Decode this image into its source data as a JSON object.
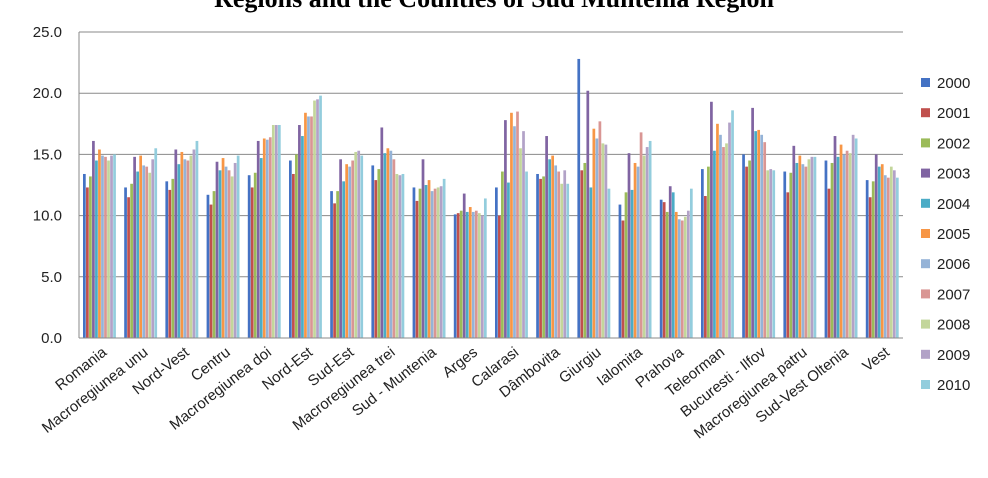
{
  "chart_data": {
    "type": "bar",
    "title": "Regions and the Counties of Sud Muntenia Region",
    "xlabel": "",
    "ylabel": "",
    "ylim": [
      0,
      25
    ],
    "yticks": [
      "0.0",
      "5.0",
      "10.0",
      "15.0",
      "20.0",
      "25.0"
    ],
    "grid": true,
    "legend_position": "right",
    "categories": [
      "Romania",
      "Macroregiunea unu",
      "Nord-Vest",
      "Centru",
      "Macroregiunea doi",
      "Nord-Est",
      "Sud-Est",
      "Macroregiunea trei",
      "Sud - Muntenia",
      "Arges",
      "Calarasi",
      "Dâmbovita",
      "Giurgiu",
      "Ialomita",
      "Prahova",
      "Teleorman",
      "Bucuresti - Ilfov",
      "Macroregiunea patru",
      "Sud-Vest Oltenia",
      "Vest"
    ],
    "series": [
      {
        "name": "2000",
        "color": "#4472C4",
        "values": [
          13.4,
          12.3,
          12.8,
          11.7,
          13.3,
          14.5,
          12.0,
          14.1,
          12.3,
          10.1,
          12.3,
          13.4,
          22.8,
          10.9,
          11.3,
          13.8,
          15.0,
          13.6,
          14.5,
          12.9
        ]
      },
      {
        "name": "2001",
        "color": "#C0504D",
        "values": [
          12.3,
          11.5,
          12.1,
          10.9,
          12.3,
          13.4,
          11.0,
          12.9,
          11.2,
          10.2,
          10.0,
          13.0,
          13.7,
          9.6,
          11.1,
          11.6,
          14.0,
          11.9,
          12.2,
          11.5
        ]
      },
      {
        "name": "2002",
        "color": "#9BBB59",
        "values": [
          13.2,
          12.6,
          13.0,
          12.0,
          13.5,
          15.0,
          12.0,
          13.8,
          12.2,
          10.4,
          13.6,
          13.2,
          14.3,
          11.9,
          10.3,
          14.0,
          14.5,
          13.5,
          14.3,
          12.8
        ]
      },
      {
        "name": "2003",
        "color": "#8064A2",
        "values": [
          16.1,
          14.8,
          15.4,
          14.4,
          16.1,
          17.4,
          14.6,
          17.2,
          14.6,
          11.8,
          17.8,
          16.5,
          20.2,
          15.1,
          12.4,
          19.3,
          18.8,
          15.7,
          16.5,
          15.0
        ]
      },
      {
        "name": "2004",
        "color": "#4BACC6",
        "values": [
          14.5,
          13.6,
          14.2,
          13.7,
          14.7,
          16.5,
          12.8,
          15.1,
          12.5,
          10.3,
          12.7,
          14.6,
          12.3,
          12.1,
          11.9,
          15.3,
          16.9,
          14.3,
          14.8,
          14.0
        ]
      },
      {
        "name": "2005",
        "color": "#F79646",
        "values": [
          15.4,
          14.9,
          15.2,
          14.7,
          16.3,
          18.4,
          14.2,
          15.5,
          12.9,
          10.7,
          18.4,
          14.9,
          17.1,
          14.3,
          10.3,
          17.5,
          17.0,
          14.9,
          15.8,
          14.2
        ]
      },
      {
        "name": "2006",
        "color": "#95B3D7",
        "values": [
          14.9,
          14.1,
          14.6,
          14.0,
          16.2,
          18.1,
          14.0,
          15.3,
          12.0,
          10.3,
          17.3,
          14.1,
          16.3,
          14.0,
          9.7,
          16.6,
          16.6,
          14.2,
          15.0,
          13.3
        ]
      },
      {
        "name": "2007",
        "color": "#D99694",
        "values": [
          14.8,
          14.0,
          14.5,
          13.7,
          16.4,
          18.1,
          14.5,
          14.6,
          12.2,
          10.4,
          18.5,
          13.6,
          17.7,
          16.8,
          9.6,
          15.6,
          16.0,
          14.0,
          15.3,
          13.1
        ]
      },
      {
        "name": "2008",
        "color": "#C3D69B",
        "values": [
          14.5,
          13.5,
          14.9,
          13.2,
          17.4,
          19.4,
          15.2,
          13.4,
          12.3,
          10.2,
          15.5,
          12.6,
          15.9,
          14.9,
          9.9,
          15.9,
          13.7,
          14.6,
          15.1,
          14.0
        ]
      },
      {
        "name": "2009",
        "color": "#B2A2C7",
        "values": [
          14.9,
          14.6,
          15.4,
          14.3,
          17.4,
          19.5,
          15.3,
          13.3,
          12.4,
          10.0,
          16.9,
          13.7,
          15.8,
          15.6,
          10.4,
          17.6,
          13.8,
          14.8,
          16.6,
          13.7
        ]
      },
      {
        "name": "2010",
        "color": "#93CDDD",
        "values": [
          15.0,
          15.5,
          16.1,
          14.9,
          17.4,
          19.8,
          14.9,
          13.4,
          13.0,
          11.4,
          13.6,
          12.6,
          12.2,
          16.1,
          12.2,
          18.6,
          13.7,
          14.8,
          16.3,
          13.1
        ]
      }
    ]
  }
}
